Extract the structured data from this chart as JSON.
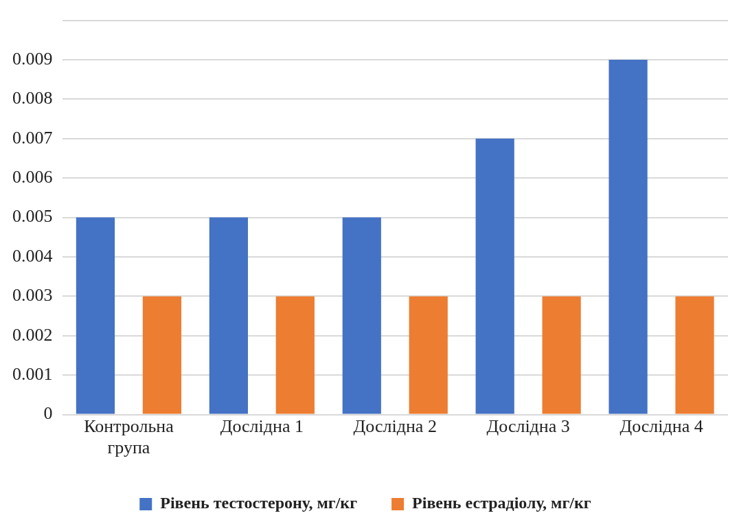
{
  "chart_data": {
    "type": "bar",
    "categories": [
      "Контрольна група",
      "Дослідна 1",
      "Дослідна 2",
      "Дослідна 3",
      "Дослідна 4"
    ],
    "series": [
      {
        "name": "Рівень тестостерону, мг/кг",
        "color": "#4472c4",
        "values": [
          0.005,
          0.005,
          0.005,
          0.007,
          0.009
        ]
      },
      {
        "name": "Рівень естрадіолу, мг/кг",
        "color": "#ed7d31",
        "values": [
          0.003,
          0.003,
          0.003,
          0.003,
          0.003
        ]
      }
    ],
    "ylim": [
      0,
      0.01
    ],
    "yticks": [
      0,
      0.001,
      0.002,
      0.003,
      0.004,
      0.005,
      0.006,
      0.007,
      0.008,
      0.009,
      {
        "value": 0.01,
        "label": null
      }
    ],
    "grid": "y",
    "legend": "bottom"
  }
}
